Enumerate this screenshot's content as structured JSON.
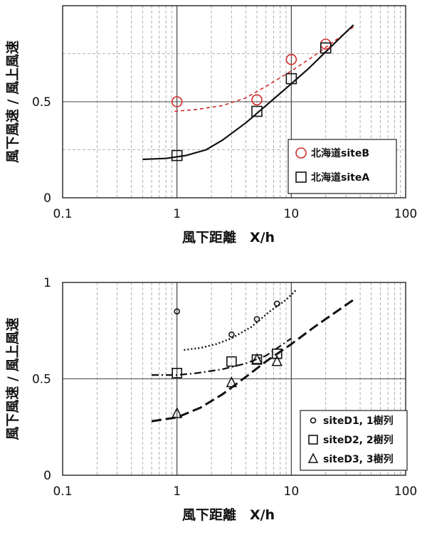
{
  "colors": {
    "siteB": "#d22a2a",
    "black": "#111111"
  },
  "chart_data": [
    {
      "type": "scatter",
      "xlabel": "風下距離　X/h",
      "ylabel": "風下風速 / 風上風速",
      "xscale": "log",
      "xlim": [
        0.1,
        100
      ],
      "ylim": [
        0,
        1
      ],
      "x_ticks": [
        "0.1",
        "1",
        "10",
        "100"
      ],
      "y_ticks": [
        "0",
        "0.5"
      ],
      "grid": true,
      "legend_position": "bottom-right",
      "series": [
        {
          "name": "北海道siteB",
          "marker": "circle",
          "color": "#d22a2a",
          "points": [
            [
              1,
              0.5
            ],
            [
              5,
              0.51
            ],
            [
              10,
              0.72
            ],
            [
              20,
              0.8
            ]
          ],
          "fit": [
            [
              0.95,
              0.45
            ],
            [
              1.5,
              0.46
            ],
            [
              2.5,
              0.48
            ],
            [
              4,
              0.52
            ],
            [
              6,
              0.58
            ],
            [
              10,
              0.66
            ],
            [
              15,
              0.73
            ],
            [
              22,
              0.8
            ],
            [
              35,
              0.89
            ]
          ]
        },
        {
          "name": "北海道siteA",
          "marker": "square",
          "color": "#111111",
          "points": [
            [
              1,
              0.22
            ],
            [
              5,
              0.45
            ],
            [
              10,
              0.62
            ],
            [
              20,
              0.78
            ]
          ],
          "fit": [
            [
              0.5,
              0.2
            ],
            [
              0.8,
              0.205
            ],
            [
              1.2,
              0.22
            ],
            [
              1.8,
              0.25
            ],
            [
              2.5,
              0.3
            ],
            [
              4,
              0.39
            ],
            [
              6,
              0.48
            ],
            [
              9,
              0.57
            ],
            [
              14,
              0.67
            ],
            [
              20,
              0.76
            ],
            [
              35,
              0.9
            ]
          ]
        }
      ]
    },
    {
      "type": "scatter",
      "xlabel": "風下距離　X/h",
      "ylabel": "風下風速 / 風上風速",
      "xscale": "log",
      "xlim": [
        0.1,
        100
      ],
      "ylim": [
        0,
        1
      ],
      "x_ticks": [
        "0.1",
        "1",
        "10",
        "100"
      ],
      "y_ticks": [
        "0",
        "0.5",
        "1"
      ],
      "grid": true,
      "legend_position": "bottom-right",
      "series": [
        {
          "name": "siteD1, 1樹列",
          "marker": "circle",
          "color": "#111111",
          "points": [
            [
              1,
              0.85
            ],
            [
              3,
              0.73
            ],
            [
              5,
              0.81
            ],
            [
              7.5,
              0.89
            ]
          ],
          "fit": [
            [
              1.15,
              0.65
            ],
            [
              1.6,
              0.66
            ],
            [
              2.2,
              0.68
            ],
            [
              3,
              0.71
            ],
            [
              4.5,
              0.77
            ],
            [
              6.5,
              0.85
            ],
            [
              9,
              0.91
            ],
            [
              11,
              0.96
            ]
          ]
        },
        {
          "name": "siteD2, 2樹列",
          "marker": "square",
          "color": "#111111",
          "points": [
            [
              1,
              0.53
            ],
            [
              3,
              0.59
            ],
            [
              5,
              0.6
            ],
            [
              7.5,
              0.63
            ]
          ],
          "fit": [
            [
              0.6,
              0.52
            ],
            [
              1,
              0.52
            ],
            [
              1.5,
              0.53
            ],
            [
              2.5,
              0.55
            ],
            [
              4,
              0.58
            ],
            [
              6,
              0.62
            ],
            [
              8,
              0.67
            ],
            [
              10,
              0.71
            ]
          ]
        },
        {
          "name": "siteD3, 3樹列",
          "marker": "triangle",
          "color": "#111111",
          "points": [
            [
              1,
              0.32
            ],
            [
              3,
              0.48
            ],
            [
              5,
              0.6
            ],
            [
              7.5,
              0.59
            ]
          ],
          "fit": [
            [
              0.6,
              0.28
            ],
            [
              1,
              0.3
            ],
            [
              1.6,
              0.35
            ],
            [
              2.5,
              0.42
            ],
            [
              4,
              0.51
            ],
            [
              6,
              0.59
            ],
            [
              10,
              0.68
            ],
            [
              16,
              0.77
            ],
            [
              25,
              0.85
            ],
            [
              37,
              0.92
            ]
          ]
        }
      ]
    }
  ]
}
